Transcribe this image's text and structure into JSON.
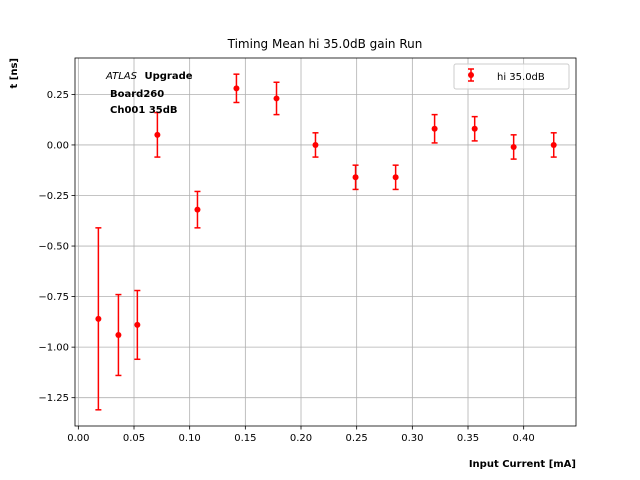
{
  "chart_data": {
    "type": "scatter",
    "title": "Timing Mean hi 35.0dB gain Run",
    "xlabel": "Input Current [mA]",
    "ylabel": "t [ns]",
    "xlim": [
      -0.003,
      0.447
    ],
    "ylim": [
      -1.39,
      0.43
    ],
    "xticks": [
      0.0,
      0.05,
      0.1,
      0.15,
      0.2,
      0.25,
      0.3,
      0.35,
      0.4
    ],
    "xtick_labels": [
      "0.00",
      "0.05",
      "0.10",
      "0.15",
      "0.20",
      "0.25",
      "0.30",
      "0.35",
      "0.40"
    ],
    "yticks": [
      0.25,
      0.0,
      -0.25,
      -0.5,
      -0.75,
      -1.0,
      -1.25
    ],
    "ytick_labels": [
      "0.25",
      "0.00",
      "−0.25",
      "−0.50",
      "−0.75",
      "−1.00",
      "−1.25"
    ],
    "grid": true,
    "legend_position": "top-right",
    "annotation": {
      "line1_italic": "ATLAS",
      "line1_bold": "Upgrade",
      "line2": "Board260",
      "line3": "Ch001 35dB"
    },
    "series": [
      {
        "name": "hi 35.0dB",
        "color": "#ff0000",
        "x": [
          0.018,
          0.036,
          0.053,
          0.071,
          0.107,
          0.142,
          0.178,
          0.213,
          0.249,
          0.285,
          0.32,
          0.356,
          0.391,
          0.427
        ],
        "y": [
          -0.86,
          -0.94,
          -0.89,
          0.05,
          -0.32,
          0.28,
          0.23,
          0.0,
          -0.16,
          -0.16,
          0.08,
          0.08,
          -0.01,
          0.0
        ],
        "yerr": [
          0.45,
          0.2,
          0.17,
          0.11,
          0.09,
          0.07,
          0.08,
          0.06,
          0.06,
          0.06,
          0.07,
          0.06,
          0.06,
          0.06
        ]
      }
    ]
  }
}
